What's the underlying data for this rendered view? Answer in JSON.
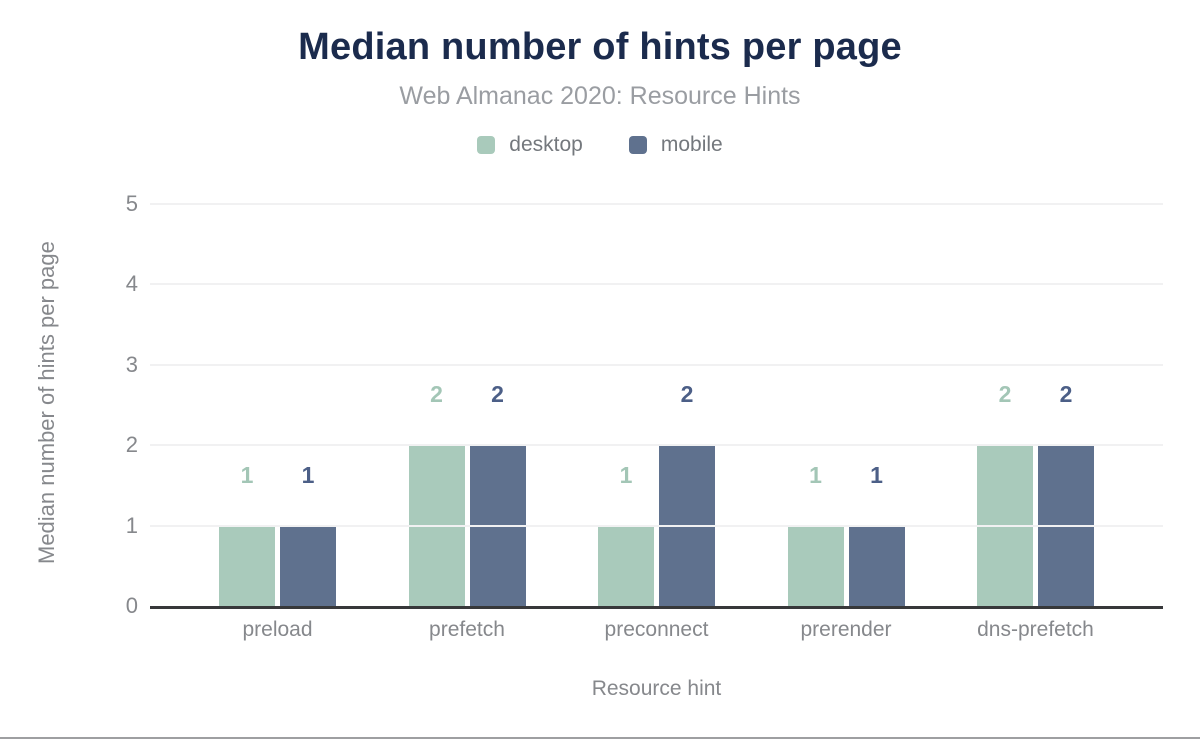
{
  "header": {
    "title": "Median number of hints per page",
    "subtitle": "Web Almanac 2020: Resource Hints"
  },
  "colors": {
    "title_navy": "#1b2b4d",
    "subtitle_gray": "#9a9da2",
    "axis_text_gray": "#86888c",
    "gridline": "#f1f1f2",
    "axis_baseline": "#37383a",
    "bottom_rule": "#9e9fa1"
  },
  "chart_data": {
    "type": "bar",
    "title": "Median number of hints per page",
    "subtitle": "Web Almanac 2020: Resource Hints",
    "categories": [
      "preload",
      "prefetch",
      "preconnect",
      "prerender",
      "dns-prefetch"
    ],
    "series": [
      {
        "name": "desktop",
        "color": "#a9cabb",
        "label_color": "#a3c6b6",
        "values": [
          1,
          2,
          1,
          1,
          2
        ]
      },
      {
        "name": "mobile",
        "color": "#5f718e",
        "label_color": "#4c5f87",
        "values": [
          1,
          2,
          2,
          1,
          2
        ]
      }
    ],
    "xlabel": "Resource hint",
    "ylabel": "Median number of hints per page",
    "ylim": [
      0,
      5
    ],
    "yticks": [
      0,
      1,
      2,
      3,
      4,
      5
    ],
    "grid": true,
    "legend_position": "top",
    "data_labels": true
  }
}
